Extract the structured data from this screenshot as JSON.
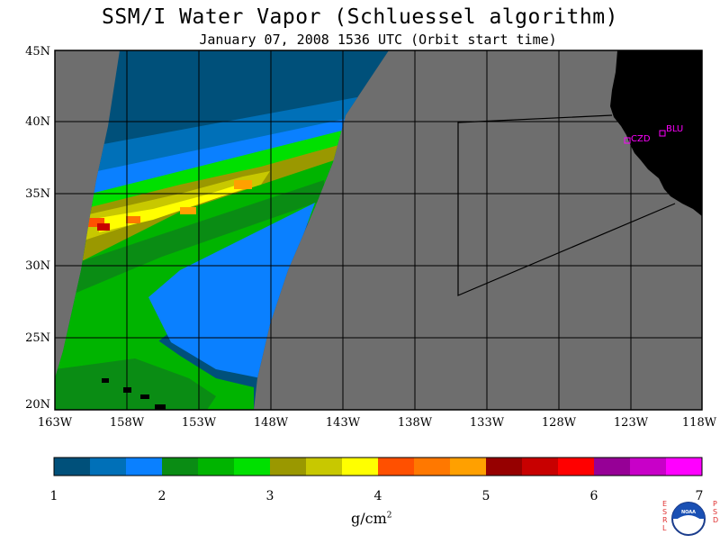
{
  "title": "SSM/I Water Vapor (Schluessel algorithm)",
  "subtitle": "January 07, 2008  1536 UTC  (Orbit start time)",
  "lat_labels": [
    "45N",
    "40N",
    "35N",
    "30N",
    "25N",
    "20N"
  ],
  "lon_labels": [
    "163W",
    "158W",
    "153W",
    "148W",
    "143W",
    "138W",
    "133W",
    "128W",
    "123W",
    "118W"
  ],
  "stations": [
    {
      "id": "CZD",
      "lat": 38.6,
      "lon": -123.2
    },
    {
      "id": "BLU",
      "lat": 39.3,
      "lon": -120.7
    }
  ],
  "colorbar": {
    "ticks": [
      "1",
      "2",
      "3",
      "4",
      "5",
      "6",
      "7"
    ],
    "units_base": "g/cm",
    "units_exp": "2",
    "colors": [
      "#00507a",
      "#0070b8",
      "#0a80ff",
      "#0a8c14",
      "#00b400",
      "#00e000",
      "#9a9800",
      "#c8c800",
      "#ffff00",
      "#ff5000",
      "#ff7800",
      "#ffa000",
      "#960000",
      "#c80000",
      "#ff0000",
      "#960096",
      "#c800c8",
      "#ff00ff"
    ]
  },
  "map": {
    "lat_range": [
      20,
      45
    ],
    "lon_range": [
      -163,
      -118
    ],
    "land_color": "#000000",
    "missing_color": "#6e6e6e",
    "grid_color": "#000000"
  },
  "logo": {
    "left_text": "ESRL",
    "right_text": "PSD",
    "emblem": "NOAA",
    "text_color": "#e03030"
  }
}
